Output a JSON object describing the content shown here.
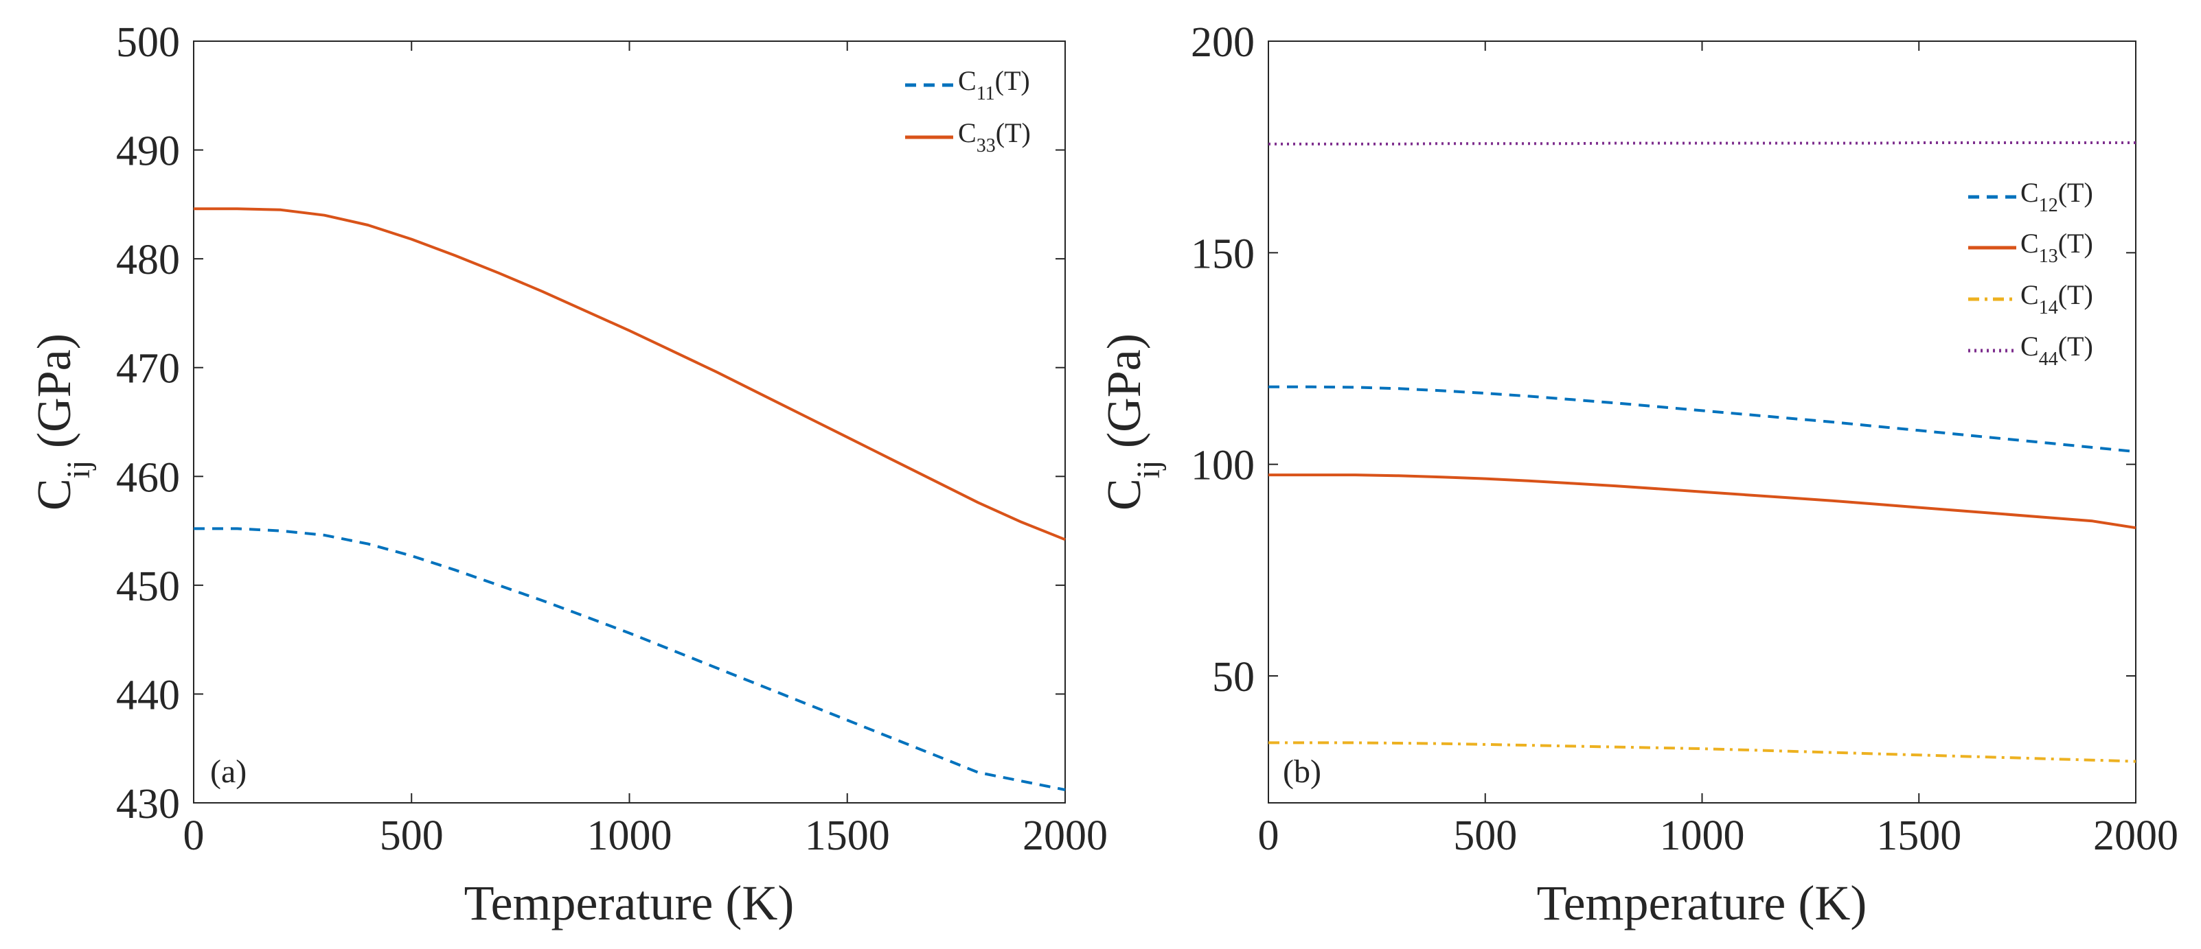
{
  "colors": {
    "blue": "#0072BD",
    "orange": "#D95319",
    "yellow": "#EDB120",
    "purple": "#7E2F8E",
    "axis": "#262626"
  },
  "chart_data": [
    {
      "type": "line",
      "panel_label": "(a)",
      "xlabel": "Temperature (K)",
      "ylabel": {
        "main": "C",
        "sub": "ij",
        "unit": " (GPa)"
      },
      "xlim": [
        0,
        2000
      ],
      "ylim": [
        430,
        500
      ],
      "xticks": [
        0,
        500,
        1000,
        1500,
        2000
      ],
      "yticks": [
        430,
        440,
        450,
        460,
        470,
        480,
        490,
        500
      ],
      "grid": false,
      "legend_position": "top-right",
      "x": [
        0,
        100,
        200,
        300,
        400,
        500,
        600,
        700,
        800,
        900,
        1000,
        1100,
        1200,
        1300,
        1400,
        1500,
        1600,
        1700,
        1800,
        1900,
        2000
      ],
      "series": [
        {
          "name": "C11(T)",
          "label_main": "C",
          "label_sub": "11",
          "label_tail": "(T)",
          "style": "dashed",
          "color": "#0072BD",
          "values": [
            455.2,
            455.2,
            455.0,
            454.6,
            453.8,
            452.7,
            451.4,
            450.0,
            448.6,
            447.1,
            445.6,
            444.0,
            442.4,
            440.8,
            439.2,
            437.6,
            436.0,
            434.4,
            432.8,
            432.0,
            431.2
          ]
        },
        {
          "name": "C33(T)",
          "label_main": "C",
          "label_sub": "33",
          "label_tail": "(T)",
          "style": "solid",
          "color": "#D95319",
          "values": [
            484.6,
            484.6,
            484.5,
            484.0,
            483.1,
            481.8,
            480.3,
            478.7,
            477.0,
            475.2,
            473.4,
            471.5,
            469.6,
            467.6,
            465.6,
            463.6,
            461.6,
            459.6,
            457.6,
            455.8,
            454.2
          ]
        }
      ]
    },
    {
      "type": "line",
      "panel_label": "(b)",
      "xlabel": "Temperature (K)",
      "ylabel": {
        "main": "C",
        "sub": "ij",
        "unit": " (GPa)"
      },
      "xlim": [
        0,
        2000
      ],
      "ylim": [
        20,
        200
      ],
      "xticks": [
        0,
        500,
        1000,
        1500,
        2000
      ],
      "yticks": [
        50,
        100,
        150,
        200
      ],
      "grid": false,
      "legend_position": "upper-right",
      "x": [
        0,
        100,
        200,
        300,
        400,
        500,
        600,
        700,
        800,
        900,
        1000,
        1100,
        1200,
        1300,
        1400,
        1500,
        1600,
        1700,
        1800,
        1900,
        2000
      ],
      "series": [
        {
          "name": "C12(T)",
          "label_main": "C",
          "label_sub": "12",
          "label_tail": "(T)",
          "style": "dashed",
          "color": "#0072BD",
          "values": [
            118.3,
            118.3,
            118.2,
            117.9,
            117.4,
            116.8,
            116.1,
            115.3,
            114.5,
            113.6,
            112.7,
            111.8,
            110.9,
            110.0,
            109.0,
            108.0,
            107.0,
            106.0,
            105.0,
            104.0,
            103.0
          ]
        },
        {
          "name": "C13(T)",
          "label_main": "C",
          "label_sub": "13",
          "label_tail": "(T)",
          "style": "solid",
          "color": "#D95319",
          "values": [
            97.5,
            97.5,
            97.5,
            97.3,
            97.0,
            96.6,
            96.1,
            95.5,
            94.9,
            94.2,
            93.5,
            92.8,
            92.1,
            91.4,
            90.6,
            89.8,
            89.0,
            88.2,
            87.4,
            86.6,
            85.0
          ]
        },
        {
          "name": "C14(T)",
          "label_main": "C",
          "label_sub": "14",
          "label_tail": "(T)",
          "style": "dashdot",
          "color": "#EDB120",
          "values": [
            34.2,
            34.2,
            34.2,
            34.1,
            34.0,
            33.8,
            33.6,
            33.4,
            33.2,
            33.0,
            32.8,
            32.5,
            32.2,
            31.9,
            31.6,
            31.3,
            31.0,
            30.7,
            30.4,
            30.1,
            29.8
          ]
        },
        {
          "name": "C44(T)",
          "label_main": "C",
          "label_sub": "44",
          "label_tail": "(T)",
          "style": "dotted",
          "color": "#7E2F8E",
          "values": [
            175.7,
            175.7,
            175.7,
            175.7,
            175.8,
            175.8,
            175.8,
            175.8,
            175.9,
            175.9,
            175.9,
            175.9,
            175.9,
            175.9,
            175.9,
            176.0,
            176.0,
            176.0,
            176.0,
            176.0,
            176.0
          ]
        }
      ]
    }
  ]
}
